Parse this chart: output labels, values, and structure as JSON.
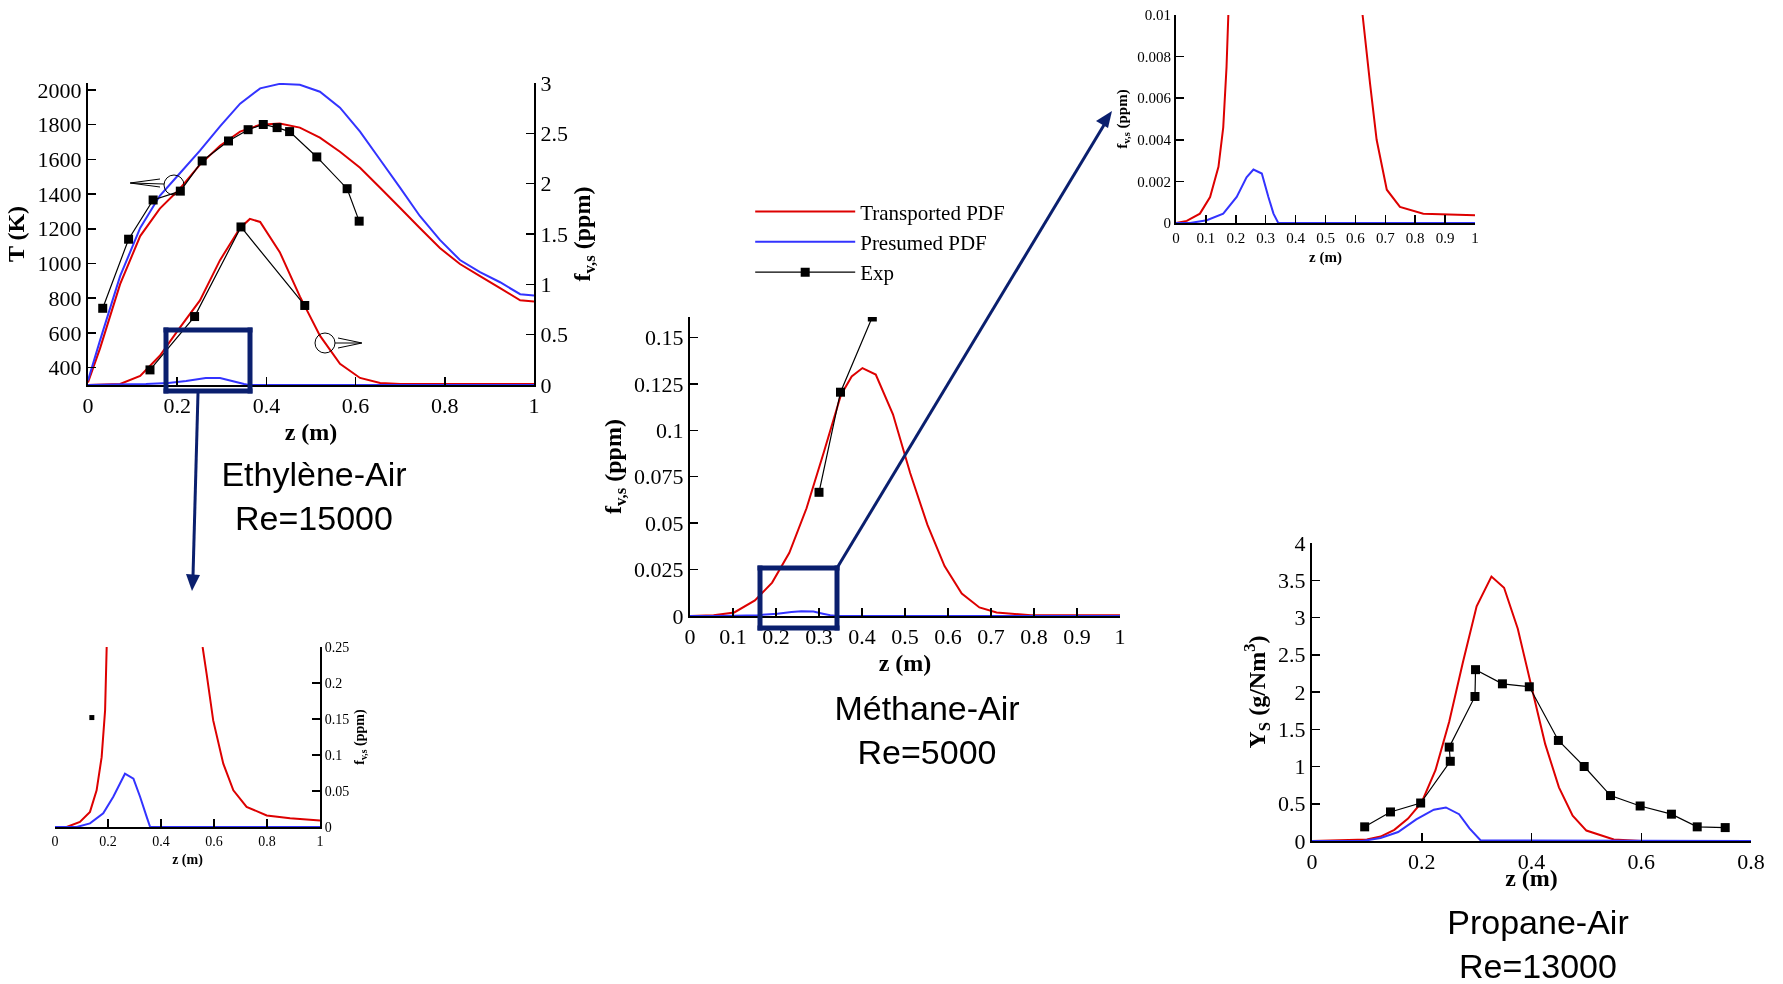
{
  "chart_data": [
    {
      "type": "line",
      "xlabel": "z (m)",
      "ylabel": "T (K)",
      "y2label": "f$_{v,s}$ (ppm)",
      "annotations": [
        "Ethylène-Air",
        "Re=15000"
      ],
      "xlim": [
        0,
        1
      ],
      "xticks": [
        0,
        0.2,
        0.4,
        0.6,
        0.8,
        1
      ],
      "ylim": [
        300,
        2040
      ],
      "yticks": [
        400,
        600,
        800,
        1000,
        1200,
        1400,
        1600,
        1800,
        2000
      ],
      "y2lim": [
        0,
        3
      ],
      "y2ticks": [
        0,
        0.5,
        1,
        1.5,
        2,
        2.5,
        3
      ],
      "series": [
        {
          "color": "#dd0000",
          "x": [
            0,
            0.027,
            0.072,
            0.117,
            0.161,
            0.206,
            0.251,
            0.296,
            0.341,
            0.386,
            0.43,
            0.475,
            0.52,
            0.565,
            0.61,
            0.655,
            0.7,
            0.744,
            0.789,
            0.834,
            0.879,
            0.924,
            0.969,
            1
          ],
          "values": [
            315,
            511,
            881,
            1158,
            1316,
            1431,
            1570,
            1679,
            1760,
            1799,
            1806,
            1783,
            1725,
            1644,
            1552,
            1436,
            1320,
            1205,
            1089,
            997,
            927,
            858,
            788,
            781
          ]
        },
        {
          "color": "#3333ff",
          "x": [
            0,
            0.027,
            0.072,
            0.117,
            0.161,
            0.206,
            0.251,
            0.296,
            0.341,
            0.386,
            0.43,
            0.475,
            0.52,
            0.565,
            0.61,
            0.655,
            0.7,
            0.744,
            0.789,
            0.834,
            0.879,
            0.924,
            0.969,
            1
          ],
          "values": [
            326,
            557,
            927,
            1205,
            1390,
            1520,
            1650,
            1790,
            1921,
            2009,
            2035,
            2030,
            1990,
            1898,
            1760,
            1598,
            1436,
            1274,
            1136,
            1020,
            950,
            892,
            823,
            816
          ]
        },
        {
          "color": "#000000",
          "marker": "square",
          "x": [
            0.033,
            0.091,
            0.146,
            0.207,
            0.256,
            0.315,
            0.359,
            0.393,
            0.424,
            0.452,
            0.513,
            0.581,
            0.608
          ],
          "values": [
            742,
            1140,
            1366,
            1417,
            1591,
            1706,
            1771,
            1801,
            1783,
            1760,
            1614,
            1431,
            1244
          ]
        },
        {
          "color": "#dd0000",
          "axis": "y2",
          "x": [
            0,
            0.072,
            0.117,
            0.161,
            0.206,
            0.251,
            0.296,
            0.341,
            0.363,
            0.386,
            0.43,
            0.475,
            0.52,
            0.565,
            0.61,
            0.655,
            0.7,
            1
          ],
          "values": [
            0,
            0.01,
            0.09,
            0.29,
            0.57,
            0.84,
            1.24,
            1.56,
            1.65,
            1.62,
            1.32,
            0.88,
            0.49,
            0.21,
            0.07,
            0.02,
            0.01,
            0.01
          ]
        },
        {
          "color": "#3333ff",
          "axis": "y2",
          "x": [
            0,
            0.13,
            0.18,
            0.22,
            0.264,
            0.296,
            0.35,
            0.36,
            1
          ],
          "values": [
            0,
            0.01,
            0.02,
            0.04,
            0.07,
            0.07,
            0.01,
            0,
            0
          ]
        },
        {
          "color": "#000000",
          "marker": "square",
          "axis": "y2",
          "x": [
            0.139,
            0.239,
            0.343,
            0.486
          ],
          "values": [
            0.15,
            0.68,
            1.57,
            0.79
          ]
        }
      ]
    },
    {
      "type": "line",
      "xlabel": "z (m)",
      "y2label": "f$_{v,s}$ (ppm)",
      "xlim": [
        0,
        1
      ],
      "xticks": [
        0,
        0.2,
        0.4,
        0.6,
        0.8,
        1
      ],
      "y2lim": [
        0,
        0.25
      ],
      "y2ticks": [
        0,
        0.05,
        0.1,
        0.15,
        0.2,
        0.25
      ],
      "series": [
        {
          "color": "#dd0000",
          "axis": "y2",
          "x": [
            0,
            0.044,
            0.094,
            0.132,
            0.157,
            0.176,
            0.189,
            0.195,
            0.3,
            0.557,
            0.572,
            0.597,
            0.635,
            0.673,
            0.723,
            0.799,
            0.887,
            1
          ],
          "values": [
            0,
            0,
            0.007,
            0.021,
            0.051,
            0.097,
            0.162,
            0.25,
            null,
            0.25,
            0.213,
            0.148,
            0.088,
            0.051,
            0.028,
            0.016,
            0.012,
            0.009
          ]
        },
        {
          "color": "#3333ff",
          "axis": "y2",
          "x": [
            0,
            0.082,
            0.132,
            0.182,
            0.22,
            0.264,
            0.296,
            0.321,
            0.346,
            0.359,
            1
          ],
          "values": [
            0,
            0,
            0.005,
            0.019,
            0.042,
            0.074,
            0.067,
            0.042,
            0.014,
            0,
            0
          ]
        },
        {
          "color": "#000000",
          "marker": "square",
          "axis": "y2",
          "x": [
            0.139
          ],
          "values": [
            0.152
          ]
        }
      ]
    },
    {
      "type": "line",
      "xlabel": "z (m)",
      "ylabel": "f$_{v,s}$ (ppm)",
      "annotations": [
        "Méthane-Air",
        "Re=5000"
      ],
      "legend": "top",
      "xlim": [
        0,
        1
      ],
      "xticks": [
        0,
        0.1,
        0.2,
        0.3,
        0.4,
        0.5,
        0.6,
        0.7,
        0.8,
        0.9,
        1
      ],
      "ylim": [
        0,
        0.161
      ],
      "yticks": [
        0,
        0.025,
        0.05,
        0.075,
        0.1,
        0.125,
        0.15
      ],
      "series": [
        {
          "name": "Transported PDF",
          "color": "#dd0000",
          "x": [
            0,
            0.055,
            0.103,
            0.151,
            0.191,
            0.231,
            0.271,
            0.311,
            0.351,
            0.376,
            0.401,
            0.432,
            0.472,
            0.512,
            0.552,
            0.592,
            0.632,
            0.673,
            0.713,
            0.793,
            1
          ],
          "values": [
            0,
            0.0004,
            0.0019,
            0.0084,
            0.018,
            0.034,
            0.058,
            0.088,
            0.119,
            0.129,
            0.1335,
            0.13,
            0.1086,
            0.077,
            0.0492,
            0.0269,
            0.0121,
            0.0046,
            0.0019,
            0.0004,
            0.0004
          ]
        },
        {
          "name": "Presumed PDF",
          "color": "#3333ff",
          "x": [
            0,
            0.047,
            0.103,
            0.158,
            0.203,
            0.236,
            0.259,
            0.287,
            0.309,
            0.326,
            0.342,
            1
          ],
          "values": [
            0,
            0,
            0.00013,
            0.00045,
            0.00125,
            0.0022,
            0.00257,
            0.00238,
            0.00125,
            0.00045,
            0,
            0
          ]
        },
        {
          "name": "Exp",
          "color": "#000000",
          "marker": "square",
          "x": [
            0.3,
            0.35,
            0.424
          ],
          "values": [
            0.0666,
            0.1205,
            0.161
          ]
        }
      ]
    },
    {
      "type": "line",
      "xlabel": "z (m)",
      "ylabel": "f$_{v,s}$ (ppm)",
      "xlim": [
        0,
        1
      ],
      "xticks": [
        0,
        0.1,
        0.2,
        0.3,
        0.4,
        0.5,
        0.6,
        0.7,
        0.8,
        0.9,
        1
      ],
      "ylim": [
        0,
        0.01
      ],
      "yticks": [
        0,
        0.002,
        0.004,
        0.006,
        0.008,
        0.01
      ],
      "series": [
        {
          "color": "#dd0000",
          "x": [
            0,
            0.036,
            0.08,
            0.114,
            0.142,
            0.158,
            0.169,
            0.175,
            0.4,
            0.624,
            0.649,
            0.671,
            0.705,
            0.749,
            0.827,
            1
          ],
          "values": [
            0,
            0.0001,
            0.00045,
            0.00125,
            0.0027,
            0.0046,
            0.0075,
            0.01,
            null,
            0.01,
            0.0067,
            0.004,
            0.0016,
            0.00077,
            0.00045,
            0.00037
          ]
        },
        {
          "color": "#3333ff",
          "x": [
            0,
            0.047,
            0.103,
            0.158,
            0.203,
            0.236,
            0.259,
            0.287,
            0.309,
            0.326,
            0.342,
            1
          ],
          "values": [
            0,
            0,
            0.00013,
            0.00045,
            0.00125,
            0.0022,
            0.00257,
            0.00238,
            0.00125,
            0.00045,
            0,
            0
          ]
        }
      ]
    },
    {
      "type": "line",
      "xlabel": "z (m)",
      "ylabel": "Y$_{S}$ (g/Nm$^{3}$)",
      "annotations": [
        "Propane-Air",
        "Re=13000"
      ],
      "xlim": [
        0,
        0.8
      ],
      "xticks": [
        0,
        0.2,
        0.4,
        0.6,
        0.8
      ],
      "ylim": [
        0,
        4
      ],
      "yticks": [
        0,
        0.5,
        1,
        1.5,
        2,
        2.5,
        3,
        3.5,
        4
      ],
      "series": [
        {
          "color": "#dd0000",
          "x": [
            0,
            0.1,
            0.125,
            0.15,
            0.175,
            0.2,
            0.225,
            0.25,
            0.275,
            0.3,
            0.327,
            0.35,
            0.375,
            0.4,
            0.425,
            0.45,
            0.475,
            0.5,
            0.55,
            0.6,
            0.8
          ],
          "values": [
            0,
            0.02,
            0.06,
            0.15,
            0.3,
            0.52,
            0.95,
            1.6,
            2.4,
            3.15,
            3.55,
            3.4,
            2.85,
            2.07,
            1.3,
            0.72,
            0.34,
            0.14,
            0.02,
            0,
            0
          ]
        },
        {
          "color": "#3333ff",
          "x": [
            0,
            0.092,
            0.125,
            0.157,
            0.19,
            0.222,
            0.244,
            0.268,
            0.287,
            0.307,
            0.8
          ],
          "values": [
            0,
            0,
            0.04,
            0.12,
            0.29,
            0.42,
            0.45,
            0.36,
            0.17,
            0.01,
            0
          ]
        },
        {
          "color": "#000000",
          "marker": "square",
          "x": [
            0.096,
            0.143,
            0.198,
            0.252,
            0.25,
            0.297,
            0.298,
            0.347,
            0.396,
            0.449,
            0.496,
            0.544,
            0.598,
            0.655,
            0.702,
            0.753
          ],
          "values": [
            0.19,
            0.39,
            0.51,
            1.07,
            1.26,
            1.94,
            2.3,
            2.11,
            2.07,
            1.35,
            1.0,
            0.61,
            0.47,
            0.36,
            0.19,
            0.18
          ]
        }
      ]
    }
  ]
}
